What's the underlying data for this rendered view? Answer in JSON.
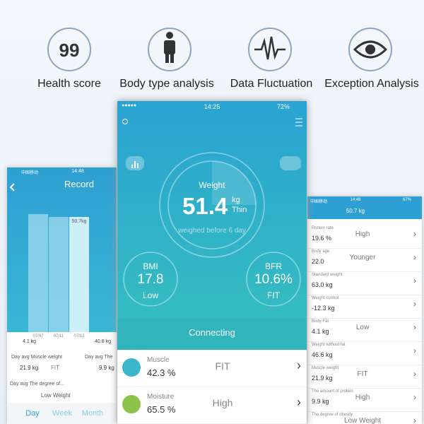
{
  "features": [
    {
      "icon_text": "99",
      "label": "Health score"
    },
    {
      "label": "Body type analysis"
    },
    {
      "label": "Data Fluctuation"
    },
    {
      "label": "Exception Analysis"
    }
  ],
  "left_phone": {
    "carrier": "中国移动",
    "time": "14:48",
    "title": "Record",
    "bar_label": "50.7kg",
    "dates": [
      "07/07",
      "07/11",
      "07/13"
    ],
    "cropped": [
      "4.1 kg",
      "40.8 kg"
    ],
    "stats": [
      {
        "label": "Day avg Muscle weight",
        "value": "21.9 kg",
        "status": "FIT"
      },
      {
        "label": "Day avg The",
        "value": "9.9 kg"
      },
      {
        "label": "Day avg The degree of...",
        "status": "Low Weight"
      }
    ],
    "tabs": [
      "Day",
      "Week",
      "Month"
    ]
  },
  "center_phone": {
    "signal": "●●●●●",
    "time": "14:25",
    "battery": "72%",
    "weight": {
      "label": "Weight",
      "value": "51.4",
      "unit": "kg",
      "status": "Thin",
      "note": "weighed before 6 day"
    },
    "bmi": {
      "label": "BMI",
      "value": "17.8",
      "status": "Low"
    },
    "bfr": {
      "label": "BFR",
      "value": "10.6%",
      "status": "FIT"
    },
    "connect": "Connecting",
    "list": [
      {
        "label": "Muscle",
        "value": "42.3 %",
        "status": "FIT"
      },
      {
        "label": "Moisture",
        "value": "65.5 %",
        "status": "High"
      }
    ]
  },
  "right_phone": {
    "carrier": "中国移动",
    "time": "14:48",
    "battery": "67%",
    "title": "50.7 kg",
    "rows": [
      {
        "label": "Protein rate",
        "value": "19.6 %",
        "status": "High"
      },
      {
        "label": "Body age",
        "value": "22.0",
        "status": "Younger"
      },
      {
        "label": "Standard weight",
        "value": "63.0 kg"
      },
      {
        "label": "Weight control",
        "value": "-12.3 kg"
      },
      {
        "label": "Body Fat",
        "value": "4.1 kg",
        "status": "Low"
      },
      {
        "label": "Weight without fat",
        "value": "46.6 kg"
      },
      {
        "label": "Muscle weight",
        "value": "21.9 kg",
        "status": "FIT"
      },
      {
        "label": "The amount of protein",
        "value": "9.9 kg",
        "status": "High"
      },
      {
        "label": "The degree of obesity",
        "status": "Low Weight"
      }
    ]
  }
}
